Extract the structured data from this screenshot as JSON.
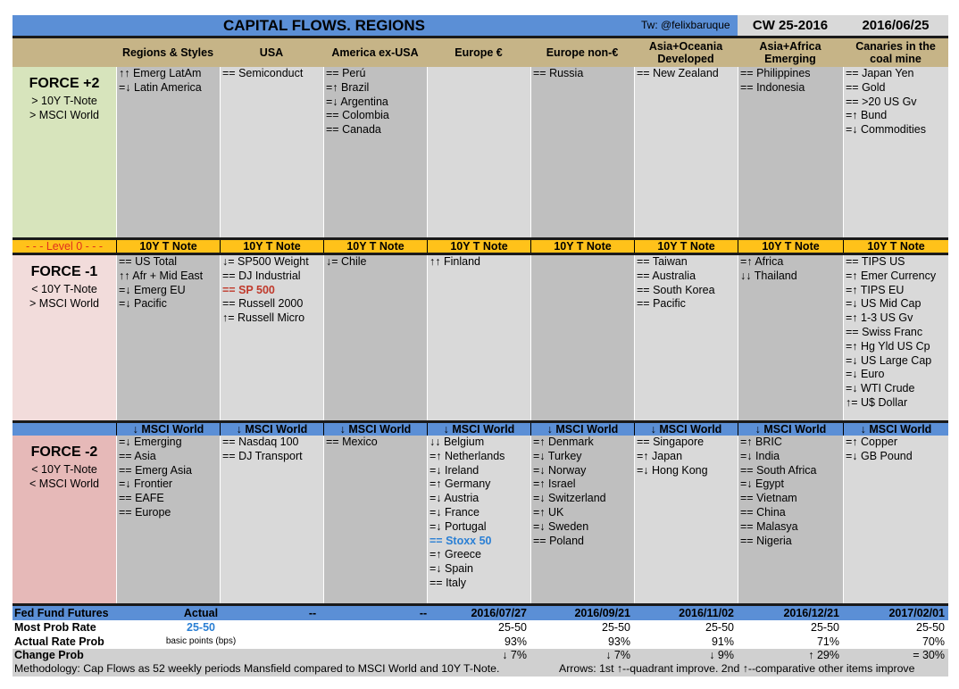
{
  "header": {
    "title": "CAPITAL FLOWS. REGIONS",
    "twitter": "Tw: @felixbaruque",
    "cw": "CW 25-2016",
    "date": "2016/06/25"
  },
  "columns": [
    "Regions & Styles",
    "USA",
    "America ex-USA",
    "Europe €",
    "Europe non-€",
    "Asia+Oceania Developed",
    "Asia+Africa Emerging",
    "Canaries in the coal mine"
  ],
  "force_plus2": {
    "name": "FORCE +2",
    "line1": "> 10Y T-Note",
    "line2": "> MSCI World",
    "cols": [
      [
        "↑↑ Emerg LatAm",
        "=↓ Latin America"
      ],
      [
        "== Semiconduct"
      ],
      [
        "== Perú",
        "=↑ Brazil",
        "=↓ Argentina",
        "== Colombia",
        "== Canada"
      ],
      [],
      [
        "== Russia"
      ],
      [
        "== New Zealand"
      ],
      [
        "== Philippines",
        "== Indonesia"
      ],
      [
        "== Japan Yen",
        "== Gold",
        "== >20 US Gv",
        "=↑ Bund",
        "=↓ Commodities"
      ]
    ]
  },
  "level0": {
    "label": "- - - Level 0 - - -",
    "bar_label": "10Y T Note"
  },
  "force_minus1": {
    "name": "FORCE -1",
    "line1": "< 10Y T-Note",
    "line2": "> MSCI World",
    "cols": [
      [
        "== US Total",
        "↑↑ Afr + Mid East",
        "=↓ Emerg EU",
        "=↓ Pacific"
      ],
      [
        "↓= SP500 Weight",
        "== DJ Industrial",
        "== SP 500",
        "== Russell 2000",
        "↑= Russell Micro"
      ],
      [
        "↓= Chile"
      ],
      [
        "↑↑ Finland"
      ],
      [],
      [
        "== Taiwan",
        "== Australia",
        "== South Korea",
        "== Pacific"
      ],
      [
        "=↑ Africa",
        "↓↓ Thailand"
      ],
      [
        "== TIPS US",
        "=↑ Emer Currency",
        "=↑ TIPS EU",
        "=↓ US Mid Cap",
        "=↑ 1-3 US Gv",
        "== Swiss Franc",
        "=↑ Hg Yld US Cp",
        "=↓ US Large Cap",
        "=↓ Euro",
        "=↓ WTI Crude",
        "↑= U$ Dollar"
      ]
    ]
  },
  "separator": {
    "bar_label": "↓ MSCI World"
  },
  "force_minus2": {
    "name": "FORCE -2",
    "line1": "< 10Y T-Note",
    "line2": "< MSCI World",
    "cols": [
      [
        "=↓ Emerging",
        "== Asia",
        "== Emerg Asia",
        "=↓ Frontier",
        "== EAFE",
        "== Europe"
      ],
      [
        "== Nasdaq 100",
        "== DJ Transport"
      ],
      [
        "== Mexico"
      ],
      [
        "↓↓ Belgium",
        "=↑ Netherlands",
        "=↓ Ireland",
        "=↑ Germany",
        "=↓ Austria",
        "=↓ France",
        "=↓ Portugal",
        "== Stoxx 50",
        "=↑ Greece",
        "=↓ Spain",
        "== Italy"
      ],
      [
        "=↑ Denmark",
        "=↓ Turkey",
        "=↓ Norway",
        "=↑ Israel",
        "=↓ Switzerland",
        "=↑ UK",
        "=↓ Sweden",
        "== Poland"
      ],
      [
        "== Singapore",
        "=↑ Japan",
        "=↓ Hong Kong"
      ],
      [
        "=↑ BRIC",
        "=↓ India",
        "== South Africa",
        "=↓ Egypt",
        "== Vietnam",
        "== China",
        "== Malasya",
        "== Nigeria"
      ],
      [
        "=↑ Copper",
        "=↓ GB Pound"
      ]
    ]
  },
  "fed": {
    "label": "Fed Fund Futures",
    "actual": "Actual",
    "dash1": "--",
    "dash2": "--",
    "dates": [
      "2016/07/27",
      "2016/09/21",
      "2016/11/02",
      "2016/12/21",
      "2017/02/01"
    ],
    "most_prob_label": "Most Prob Rate",
    "actual_rate": "25-50",
    "rates": [
      "25-50",
      "25-50",
      "25-50",
      "25-50",
      "25-50"
    ],
    "actual_prob_label": "Actual Rate Prob",
    "bps_note": "basic points (bps)",
    "probs": [
      "93%",
      "93%",
      "91%",
      "71%",
      "70%"
    ],
    "change_label": "Change Prob",
    "changes": [
      "↓  7%",
      "↓  7%",
      "↓  9%",
      "↑  29%",
      "=  30%"
    ]
  },
  "footer": {
    "methodology": "Methodology: Cap Flows as 52 weekly periods Mansfield compared to MSCI World and 10Y T-Note.",
    "arrows": "Arrows: 1st ↑--quadrant improve. 2nd ↑--comparative other items improve"
  },
  "colors": {
    "blue": "#5b8fd6",
    "green": "#d7e4bc",
    "pink1": "#f2dcdb",
    "pink2": "#e6b9b8",
    "gray1": "#d9d9d9",
    "gray2": "#bfbfbf",
    "orange": "#ffc21a",
    "red": "#c0392b",
    "accent_blue": "#2a7fd4"
  }
}
